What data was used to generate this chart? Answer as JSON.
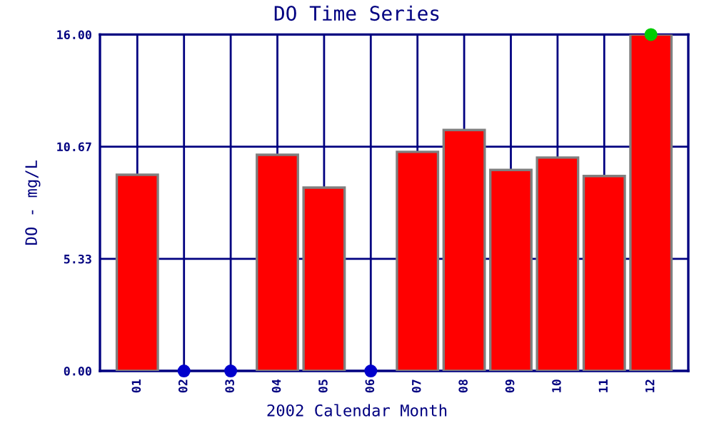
{
  "chart_data": {
    "type": "bar",
    "title": "DO Time Series",
    "xlabel": "2002 Calendar Month",
    "ylabel": "DO - mg/L",
    "categories": [
      "01",
      "02",
      "03",
      "04",
      "05",
      "06",
      "07",
      "08",
      "09",
      "10",
      "11",
      "12"
    ],
    "series": [
      {
        "color": "#ff0000",
        "values": [
          9.33,
          null,
          null,
          10.28,
          8.72,
          null,
          10.42,
          11.46,
          9.56,
          10.15,
          9.27,
          16.0
        ]
      },
      {
        "type": "scatter",
        "colors": [
          null,
          "#0000cc",
          "#0000cc",
          null,
          null,
          "#0000cc",
          null,
          null,
          null,
          null,
          null,
          "#00cc00"
        ],
        "values": [
          null,
          0,
          0,
          null,
          null,
          0,
          null,
          null,
          null,
          null,
          null,
          16.0
        ]
      }
    ],
    "ylim": [
      0,
      16
    ],
    "yticks": [
      {
        "value": 0,
        "label": "0.00"
      },
      {
        "value": 5.33,
        "label": "5.33"
      },
      {
        "value": 10.67,
        "label": "10.67"
      },
      {
        "value": 16,
        "label": "16.00"
      }
    ],
    "grid": true,
    "marker": "circle"
  }
}
